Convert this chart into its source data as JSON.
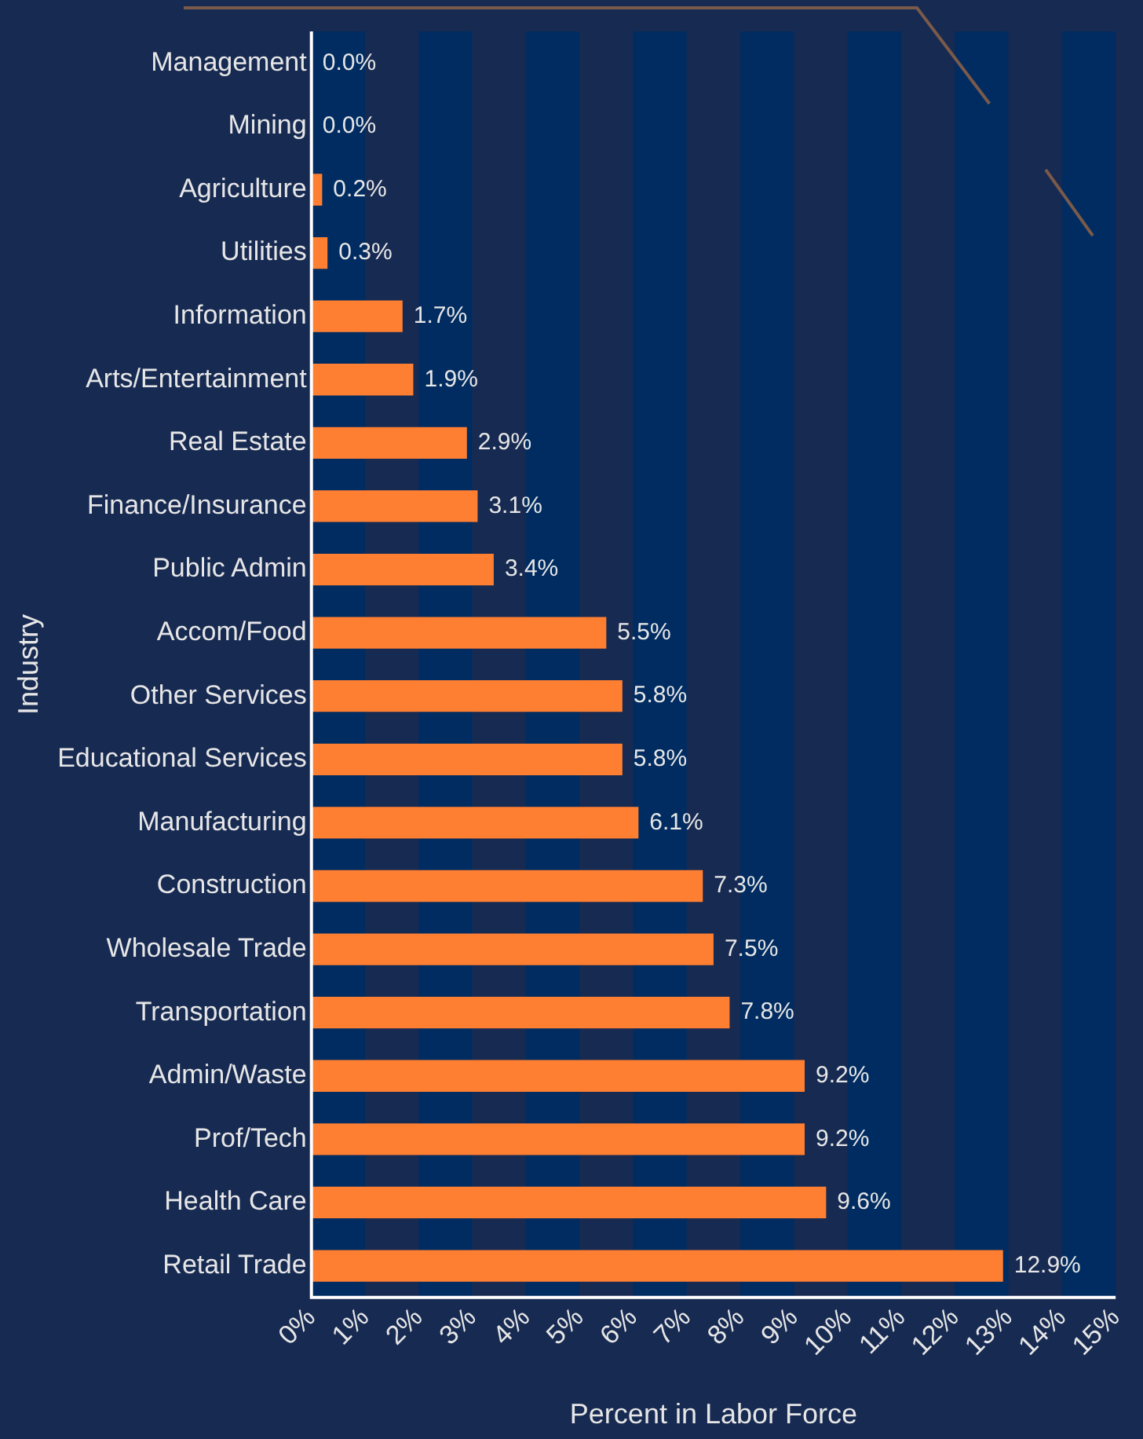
{
  "chart_data": {
    "type": "bar",
    "orientation": "horizontal",
    "xlabel": "Percent in Labor Force",
    "ylabel": "Industry",
    "categories": [
      "Management",
      "Mining",
      "Agriculture",
      "Utilities",
      "Information",
      "Arts/Entertainment",
      "Real Estate",
      "Finance/Insurance",
      "Public Admin",
      "Accom/Food",
      "Other Services",
      "Educational Services",
      "Manufacturing",
      "Construction",
      "Wholesale Trade",
      "Transportation",
      "Admin/Waste",
      "Prof/Tech",
      "Health Care",
      "Retail Trade"
    ],
    "values": [
      0.0,
      0.0,
      0.2,
      0.3,
      1.7,
      1.9,
      2.9,
      3.1,
      3.4,
      5.5,
      5.8,
      5.8,
      6.1,
      7.3,
      7.5,
      7.8,
      9.2,
      9.2,
      9.6,
      12.9
    ],
    "value_labels": [
      "0.0%",
      "0.0%",
      "0.2%",
      "0.3%",
      "1.7%",
      "1.9%",
      "2.9%",
      "3.1%",
      "3.4%",
      "5.5%",
      "5.8%",
      "5.8%",
      "6.1%",
      "7.3%",
      "7.5%",
      "7.8%",
      "9.2%",
      "9.2%",
      "9.6%",
      "12.9%"
    ],
    "color": "#ff7f32",
    "xlim": [
      0,
      15
    ],
    "xticks": [
      {
        "value": 0,
        "label": "0%"
      },
      {
        "value": 1,
        "label": "1%"
      },
      {
        "value": 2,
        "label": "2%"
      },
      {
        "value": 3,
        "label": "3%"
      },
      {
        "value": 4,
        "label": "4%"
      },
      {
        "value": 5,
        "label": "5%"
      },
      {
        "value": 6,
        "label": "6%"
      },
      {
        "value": 7,
        "label": "7%"
      },
      {
        "value": 8,
        "label": "8%"
      },
      {
        "value": 9,
        "label": "9%"
      },
      {
        "value": 10,
        "label": "10%"
      },
      {
        "value": 11,
        "label": "11%"
      },
      {
        "value": 12,
        "label": "12%"
      },
      {
        "value": 13,
        "label": "13%"
      },
      {
        "value": 14,
        "label": "14%"
      },
      {
        "value": 15,
        "label": "15%"
      }
    ],
    "bands": [
      {
        "axis": "x",
        "from": 0,
        "to": 1,
        "color": "#002c61"
      },
      {
        "axis": "x",
        "from": 2,
        "to": 3,
        "color": "#002c61"
      },
      {
        "axis": "x",
        "from": 4,
        "to": 5,
        "color": "#002c61"
      },
      {
        "axis": "x",
        "from": 6,
        "to": 7,
        "color": "#002c61"
      },
      {
        "axis": "x",
        "from": 8,
        "to": 9,
        "color": "#002c61"
      },
      {
        "axis": "x",
        "from": 10,
        "to": 11,
        "color": "#002c61"
      },
      {
        "axis": "x",
        "from": 12,
        "to": 13,
        "color": "#002c61"
      },
      {
        "axis": "x",
        "from": 14,
        "to": 15,
        "color": "#002c61"
      }
    ],
    "grid": false,
    "legend": false
  }
}
